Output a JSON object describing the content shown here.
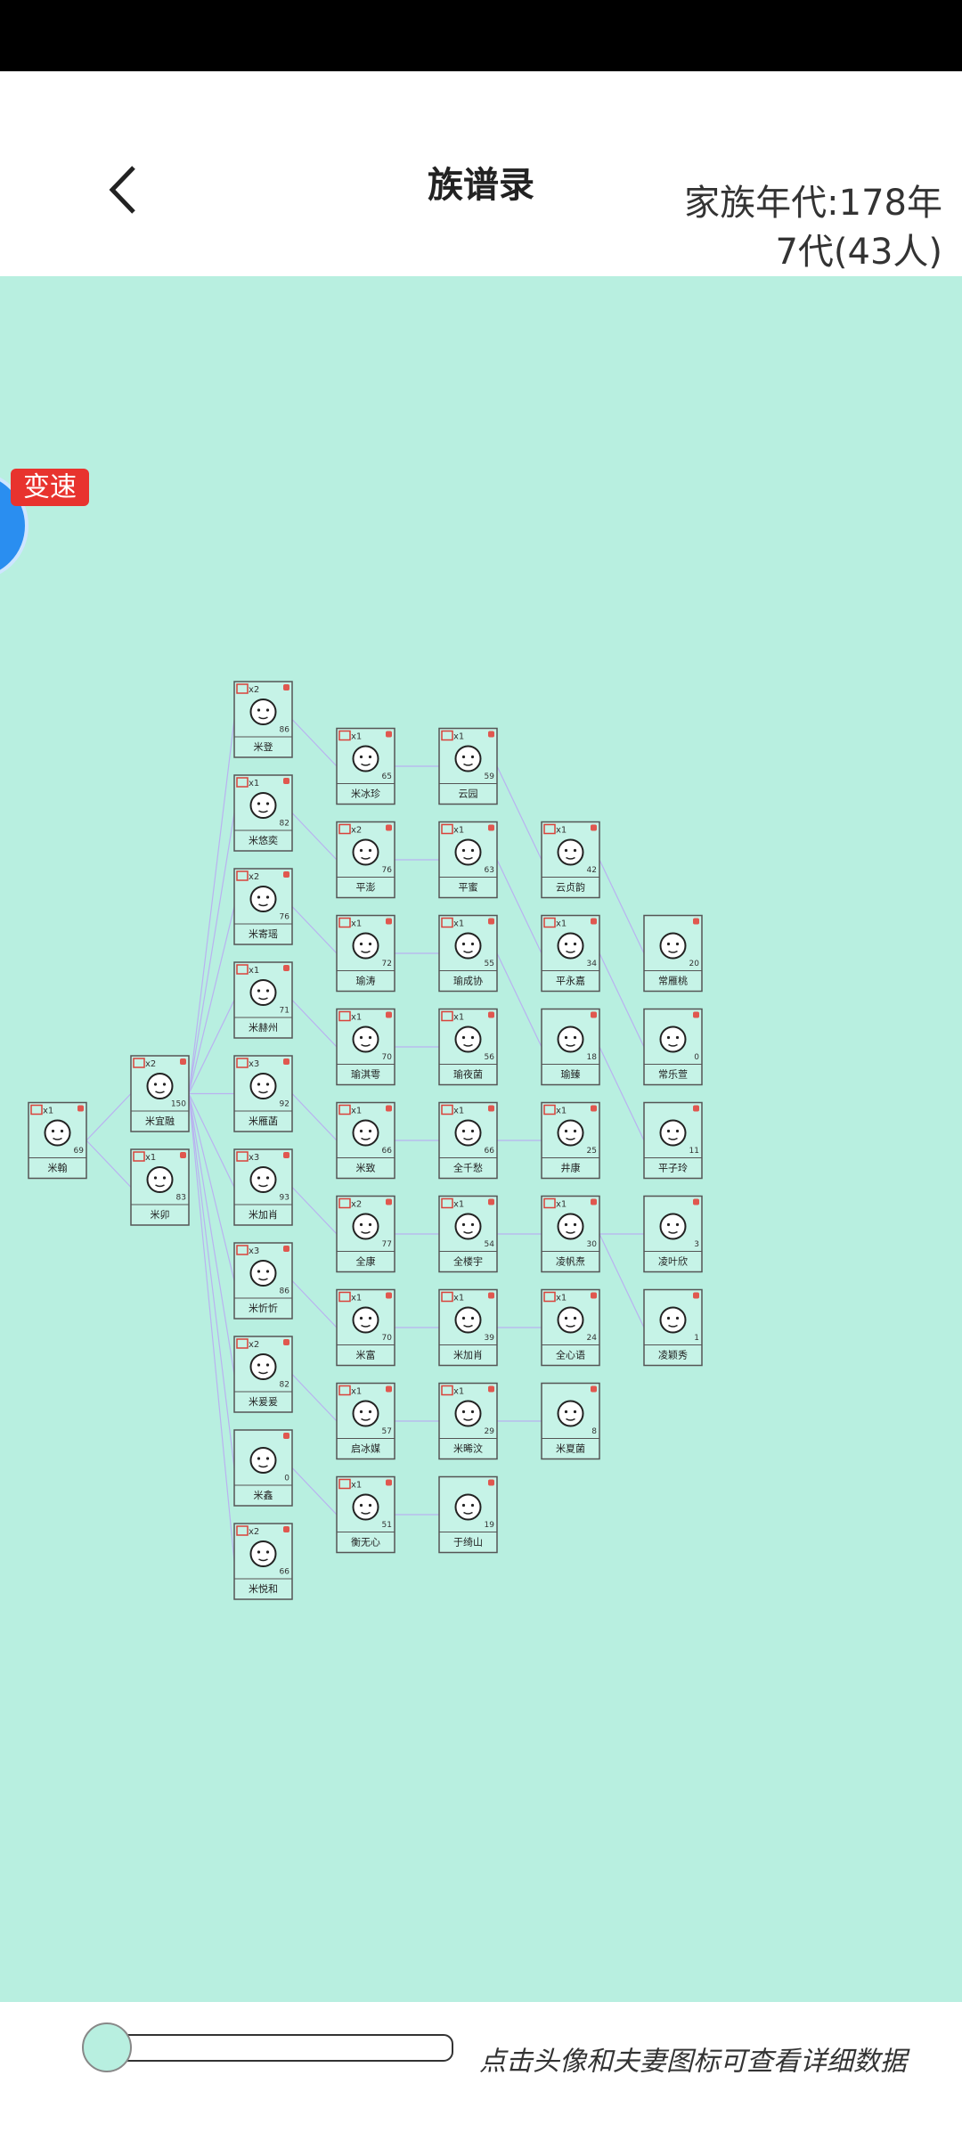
{
  "header": {
    "title": "族谱录",
    "era": "家族年代:178年",
    "generations_count": "7代(43人)"
  },
  "speed_button": "变速",
  "hint": "点击头像和夫妻图标可查看详细数据",
  "tree": {
    "generations": [
      [
        {
          "name": "米翰",
          "age": 69,
          "badge": "x1"
        }
      ],
      [
        {
          "name": "米宜融",
          "age": 150,
          "badge": "x2"
        },
        {
          "name": "米卯",
          "age": 83,
          "badge": "x1"
        }
      ],
      [
        {
          "name": "米登",
          "age": 86,
          "badge": "x2"
        },
        {
          "name": "米悠奕",
          "age": 82,
          "badge": "x1"
        },
        {
          "name": "米寄瑶",
          "age": 76,
          "badge": "x2"
        },
        {
          "name": "米赫州",
          "age": 71,
          "badge": "x1"
        },
        {
          "name": "米雁菡",
          "age": 92,
          "badge": "x3"
        },
        {
          "name": "米加肖",
          "age": 93,
          "badge": "x3"
        },
        {
          "name": "米忻忻",
          "age": 86,
          "badge": "x3"
        },
        {
          "name": "米爰爰",
          "age": 82,
          "badge": "x2"
        },
        {
          "name": "米鑫",
          "age": 0
        },
        {
          "name": "米悦和",
          "age": 66,
          "badge": "x2"
        }
      ],
      [
        {
          "name": "米冰珍",
          "age": 65,
          "badge": "x1"
        },
        {
          "name": "平澎",
          "age": 76,
          "badge": "x2"
        },
        {
          "name": "瑜涛",
          "age": 72,
          "badge": "x1"
        },
        {
          "name": "瑜淇雩",
          "age": 70,
          "badge": "x1"
        },
        {
          "name": "米致",
          "age": 66,
          "badge": "x1"
        },
        {
          "name": "全康",
          "age": 77,
          "badge": "x2"
        },
        {
          "name": "米富",
          "age": 70,
          "badge": "x1"
        },
        {
          "name": "启冰媒",
          "age": 57,
          "badge": "x1"
        },
        {
          "name": "衡无心",
          "age": 51,
          "badge": "x1"
        }
      ],
      [
        {
          "name": "云园",
          "age": 59,
          "badge": "x1"
        },
        {
          "name": "平蜜",
          "age": 63,
          "badge": "x1"
        },
        {
          "name": "瑜成协",
          "age": 55,
          "badge": "x1"
        },
        {
          "name": "瑜夜菌",
          "age": 56,
          "badge": "x1"
        },
        {
          "name": "全千愁",
          "age": 66,
          "badge": "x1"
        },
        {
          "name": "全楼宇",
          "age": 54,
          "badge": "x1"
        },
        {
          "name": "米加肖",
          "age": 39,
          "badge": "x1"
        },
        {
          "name": "米晞汶",
          "age": 29,
          "badge": "x1"
        },
        {
          "name": "于绮山",
          "age": 19
        }
      ],
      [
        {
          "name": "云贞韵",
          "age": 42,
          "badge": "x1"
        },
        {
          "name": "平永嘉",
          "age": 34,
          "badge": "x1"
        },
        {
          "name": "瑜臻",
          "age": 18
        },
        {
          "name": "井康",
          "age": 25,
          "badge": "x1"
        },
        {
          "name": "凌帆焘",
          "age": 30,
          "badge": "x1"
        },
        {
          "name": "全心语",
          "age": 24,
          "badge": "x1"
        },
        {
          "name": "米夏菌",
          "age": 8
        }
      ],
      [
        {
          "name": "常雁桃",
          "age": 20
        },
        {
          "name": "常乐萱",
          "age": 0
        },
        {
          "name": "平子玲",
          "age": 11
        },
        {
          "name": "凌叶欣",
          "age": 3
        },
        {
          "name": "凌颖秀",
          "age": 1
        }
      ]
    ]
  }
}
